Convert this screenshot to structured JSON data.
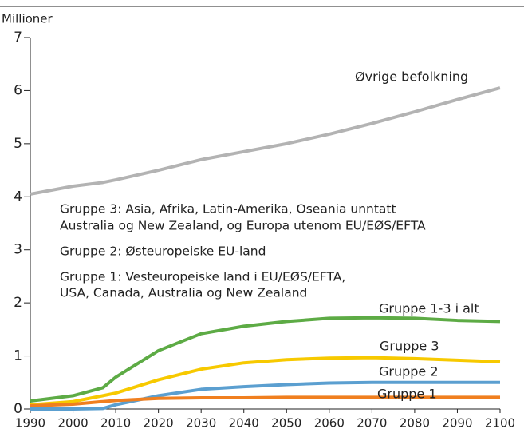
{
  "chart_data": {
    "type": "line",
    "y_axis_label": "Millioner",
    "x": [
      1990,
      2000,
      2007,
      2010,
      2020,
      2030,
      2040,
      2050,
      2060,
      2070,
      2080,
      2090,
      2100
    ],
    "series": [
      {
        "name": "Øvrige befolkning",
        "color": "#b3b3b3",
        "values": [
          4.05,
          4.2,
          4.27,
          4.32,
          4.5,
          4.7,
          4.85,
          5.0,
          5.18,
          5.38,
          5.6,
          5.83,
          6.05
        ]
      },
      {
        "name": "Gruppe 1-3 i alt",
        "color": "#5dab45",
        "values": [
          0.15,
          0.25,
          0.4,
          0.6,
          1.1,
          1.42,
          1.56,
          1.65,
          1.71,
          1.72,
          1.71,
          1.67,
          1.65
        ]
      },
      {
        "name": "Gruppe 3",
        "color": "#f7c900",
        "values": [
          0.08,
          0.14,
          0.25,
          0.3,
          0.55,
          0.75,
          0.87,
          0.93,
          0.96,
          0.97,
          0.95,
          0.92,
          0.89
        ]
      },
      {
        "name": "Gruppe 2",
        "color": "#5b9fd0",
        "values": [
          0,
          0,
          0.01,
          0.08,
          0.25,
          0.37,
          0.42,
          0.46,
          0.49,
          0.5,
          0.5,
          0.5,
          0.5
        ]
      },
      {
        "name": "Gruppe 1",
        "color": "#f07f1f",
        "values": [
          0.06,
          0.09,
          0.14,
          0.16,
          0.2,
          0.21,
          0.21,
          0.22,
          0.22,
          0.22,
          0.22,
          0.22,
          0.22
        ]
      }
    ],
    "annotations": [
      [
        "Gruppe 3: Asia, Afrika, Latin-Amerika, Oseania unntatt",
        "Australia og New Zealand,  og Europa utenom EU/EØS/EFTA"
      ],
      [
        "Gruppe 2: Østeuropeiske EU-land"
      ],
      [
        "Gruppe 1: Vesteuropeiske land i EU/EØS/EFTA,",
        "USA, Canada, Australia og New Zealand"
      ]
    ],
    "xlim": [
      1990,
      2100
    ],
    "xticks": [
      1990,
      2000,
      2010,
      2020,
      2030,
      2040,
      2050,
      2060,
      2070,
      2080,
      2090,
      2100
    ],
    "ylim": [
      0,
      7
    ],
    "yticks": [
      0,
      1,
      2,
      3,
      4,
      5,
      6,
      7
    ]
  }
}
